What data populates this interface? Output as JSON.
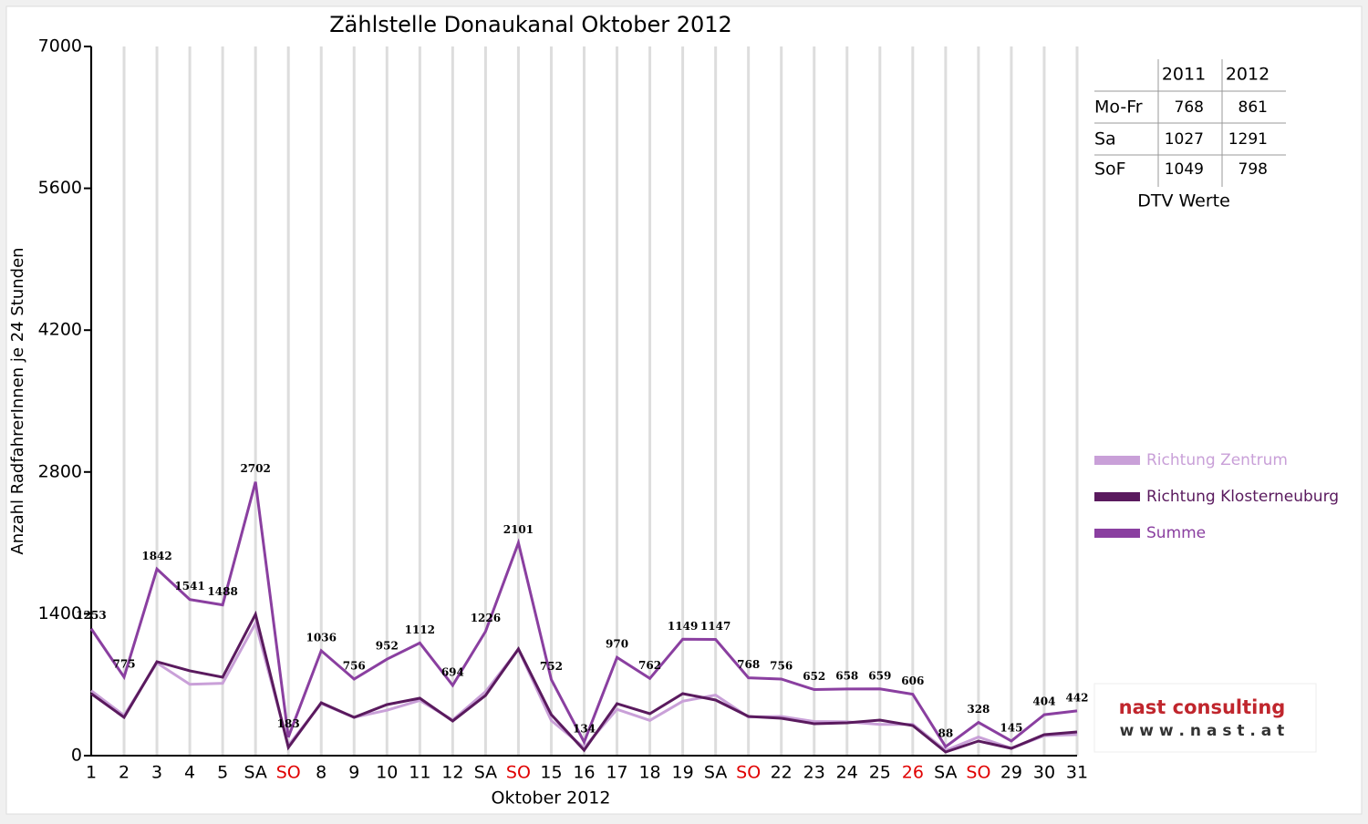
{
  "chart_data": {
    "type": "line",
    "title": "Zählstelle Donaukanal Oktober 2012",
    "x_label": "Oktober 2012",
    "y_label": "Anzahl RadfahrerInnen je 24 Stunden",
    "categories": [
      "1",
      "2",
      "3",
      "4",
      "5",
      "SA",
      "SO",
      "8",
      "9",
      "10",
      "11",
      "12",
      "SA",
      "SO",
      "15",
      "16",
      "17",
      "18",
      "19",
      "SA",
      "SO",
      "22",
      "23",
      "24",
      "25",
      "26",
      "SA",
      "SO",
      "29",
      "30",
      "31"
    ],
    "category_colors": [
      "#000",
      "#000",
      "#000",
      "#000",
      "#000",
      "#000",
      "#e00000",
      "#000",
      "#000",
      "#000",
      "#000",
      "#000",
      "#000",
      "#e00000",
      "#000",
      "#000",
      "#000",
      "#000",
      "#000",
      "#000",
      "#e00000",
      "#000",
      "#000",
      "#000",
      "#000",
      "#e00000",
      "#000",
      "#e00000",
      "#000",
      "#000",
      "#000"
    ],
    "ylim": [
      0,
      7000
    ],
    "yticks": [
      0,
      1400,
      2800,
      4200,
      5600,
      7000
    ],
    "vertical_grid": true,
    "series": [
      {
        "name": "Richtung Zentrum",
        "color": "#c9a0d8",
        "data_labels": false,
        "values": [
          641,
          397,
          915,
          704,
          714,
          1307,
          102,
          514,
          378,
          448,
          545,
          352,
          632,
          1048,
          347,
          80,
          457,
          348,
          537,
          598,
          381,
          387,
          337,
          334,
          308,
          309,
          52,
          184,
          73,
          197,
          208
        ]
      },
      {
        "name": "Richtung Klosterneuburg",
        "color": "#5a1a5e",
        "data_labels": false,
        "values": [
          612,
          378,
          927,
          837,
          774,
          1395,
          81,
          522,
          378,
          504,
          567,
          342,
          594,
          1053,
          405,
          54,
          513,
          414,
          612,
          549,
          387,
          369,
          315,
          324,
          351,
          297,
          36,
          144,
          72,
          207,
          234
        ]
      },
      {
        "name": "Summe",
        "color": "#8a3fa0",
        "data_labels": true,
        "values": [
          1253,
          775,
          1842,
          1541,
          1488,
          2702,
          183,
          1036,
          756,
          952,
          1112,
          694,
          1226,
          2101,
          752,
          134,
          970,
          762,
          1149,
          1147,
          768,
          756,
          652,
          658,
          659,
          606,
          88,
          328,
          145,
          404,
          442
        ]
      }
    ]
  },
  "dtv_table": {
    "header": [
      "2011",
      "2012"
    ],
    "rows": [
      [
        "Mo-Fr",
        "768",
        "861"
      ],
      [
        "Sa",
        "1027",
        "1291"
      ],
      [
        "SoF",
        "1049",
        "798"
      ]
    ],
    "caption": "DTV Werte"
  },
  "logo": {
    "name": "nast consulting",
    "url": "w w w . n a s t . a t"
  }
}
